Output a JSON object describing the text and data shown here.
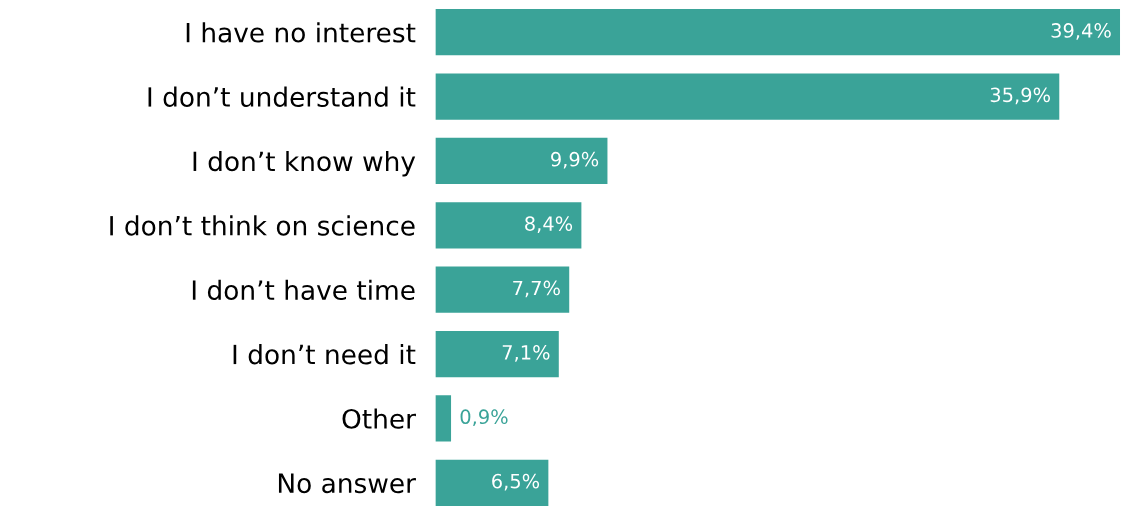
{
  "chart_data": {
    "type": "bar",
    "orientation": "horizontal",
    "categories": [
      "I have no interest",
      "I don’t understand it",
      "I don’t know why",
      "I don’t think on science",
      "I don’t have time",
      "I don’t need it",
      "Other",
      "No answer"
    ],
    "values": [
      39.4,
      35.9,
      9.9,
      8.4,
      7.7,
      7.1,
      0.9,
      6.5
    ],
    "value_labels": [
      "39,4%",
      "35,9%",
      "9,9%",
      "8,4%",
      "7,7%",
      "7,1%",
      "0,9%",
      "6,5%"
    ],
    "color": "#3aa398",
    "grid": false,
    "legend": false
  }
}
